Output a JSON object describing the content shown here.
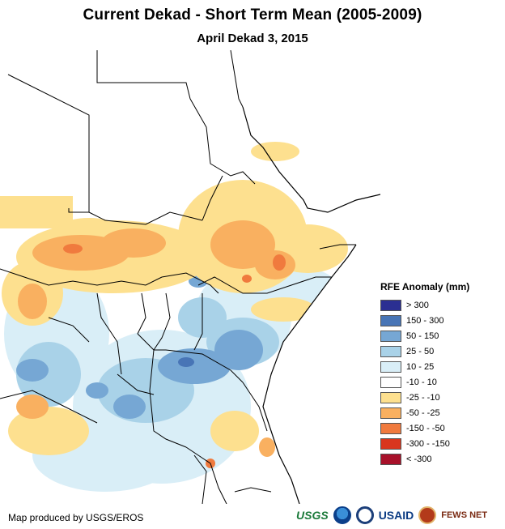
{
  "title": "Current Dekad - Short Term Mean (2005-2009)",
  "subtitle": "April Dekad 3, 2015",
  "legend": {
    "title": "RFE Anomaly (mm)",
    "items": [
      {
        "label": "> 300",
        "color": "#2b2f92"
      },
      {
        "label": "150 - 300",
        "color": "#4875b6"
      },
      {
        "label": "50 - 150",
        "color": "#76a7d4"
      },
      {
        "label": "25 - 50",
        "color": "#a9d2e8"
      },
      {
        "label": "10 - 25",
        "color": "#d9eef7"
      },
      {
        "label": "-10 - 10",
        "color": "#ffffff"
      },
      {
        "label": "-25 - -10",
        "color": "#fde08f"
      },
      {
        "label": "-50 - -25",
        "color": "#f9b060"
      },
      {
        "label": "-150 - -50",
        "color": "#f07a3e"
      },
      {
        "label": "-300 - -150",
        "color": "#d9361e"
      },
      {
        "label": "< -300",
        "color": "#a8112a"
      }
    ]
  },
  "credit": "Map produced by USGS/EROS",
  "logos": {
    "usgs": "USGS",
    "noaa_icon": "noaa-logo-icon",
    "seal_icon": "seal-logo-icon",
    "usaid": "USAID",
    "fews_icon": "fews-net-logo-icon",
    "fews": "FEWS NET"
  }
}
